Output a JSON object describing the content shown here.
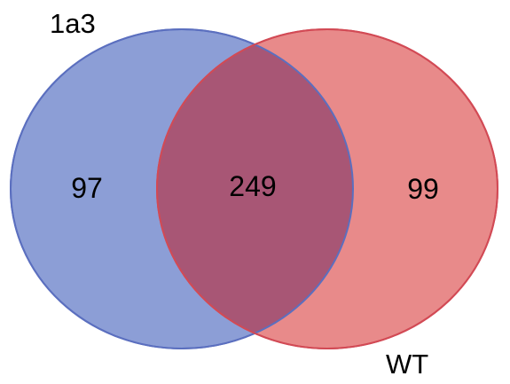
{
  "diagram": {
    "type": "venn",
    "sets": [
      {
        "label": "1a3",
        "color": "#8c9ed6",
        "stroke": "#5b6fbf"
      },
      {
        "label": "WT",
        "color": "#e88a8a",
        "stroke": "#d24a55"
      }
    ],
    "overlap_color": "#a85675",
    "regions": {
      "only_1a3": "97",
      "both": "249",
      "only_WT": "99"
    }
  }
}
